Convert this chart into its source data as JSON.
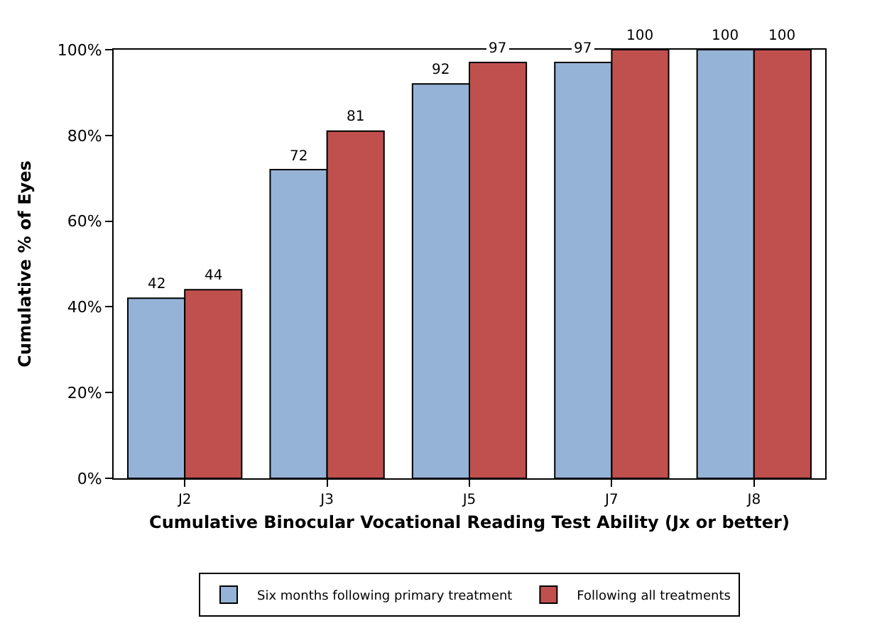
{
  "chart_data": {
    "type": "bar",
    "categories": [
      "J2",
      "J3",
      "J5",
      "J7",
      "J8"
    ],
    "series": [
      {
        "name": "Six months following primary treatment",
        "color": "#95b3d7",
        "values": [
          42,
          72,
          92,
          97,
          100
        ]
      },
      {
        "name": "Following all treatments",
        "color": "#c0504d",
        "values": [
          44,
          81,
          97,
          100,
          100
        ]
      }
    ],
    "xlabel": "Cumulative Binocular Vocational Reading Test Ability (Jx or better)",
    "ylabel": "Cumulative % of Eyes",
    "ylim": [
      0,
      100
    ],
    "yticks": [
      {
        "value": 0,
        "label": "0%"
      },
      {
        "value": 20,
        "label": "20%"
      },
      {
        "value": 40,
        "label": "40%"
      },
      {
        "value": 60,
        "label": "60%"
      },
      {
        "value": 80,
        "label": "80%"
      },
      {
        "value": 100,
        "label": "100%"
      }
    ],
    "data_labels": true,
    "grid": false,
    "legend": "bottom"
  }
}
